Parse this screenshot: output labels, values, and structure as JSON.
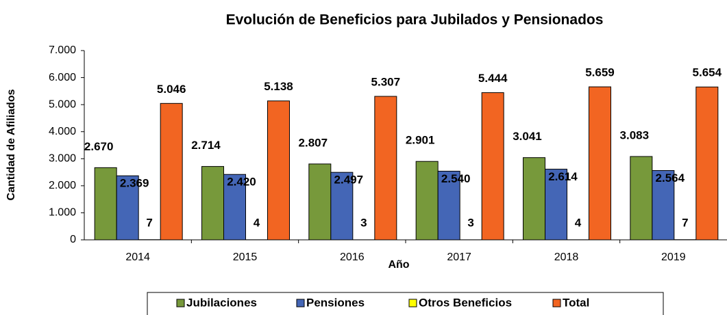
{
  "chart_data": {
    "type": "bar",
    "title": "Evolución de Beneficios para Jubilados y Pensionados",
    "x_label": "Año",
    "y_label": "Cantidad de Afiliados",
    "categories": [
      "2014",
      "2015",
      "2016",
      "2017",
      "2018",
      "2019"
    ],
    "series": [
      {
        "name": "Jubilaciones",
        "color": "#77993b",
        "values": [
          2670,
          2714,
          2807,
          2901,
          3041,
          3083
        ],
        "value_labels": [
          "2.670",
          "2.714",
          "2.807",
          "2.901",
          "3.041",
          "3.083"
        ]
      },
      {
        "name": "Pensiones",
        "color": "#4466b6",
        "values": [
          2369,
          2420,
          2497,
          2540,
          2614,
          2564
        ],
        "value_labels": [
          "2.369",
          "2.420",
          "2.497",
          "2.540",
          "2.614",
          "2.564"
        ]
      },
      {
        "name": "Otros Beneficios",
        "color": "#ffff00",
        "values": [
          7,
          4,
          3,
          3,
          4,
          7
        ],
        "value_labels": [
          "7",
          "4",
          "3",
          "3",
          "4",
          "7"
        ]
      },
      {
        "name": "Total",
        "color": "#f26522",
        "values": [
          5046,
          5138,
          5307,
          5444,
          5659,
          5654
        ],
        "value_labels": [
          "5.046",
          "5.138",
          "5.307",
          "5.444",
          "5.659",
          "5.654"
        ]
      }
    ],
    "ylim": [
      0,
      7000
    ],
    "yticks": [
      0,
      {
        "value": 1000,
        "label": "1.000"
      },
      {
        "value": 2000,
        "label": "2.000"
      },
      {
        "value": 3000,
        "label": "3.000"
      },
      {
        "value": 4000,
        "label": "4.000"
      },
      {
        "value": 5000,
        "label": "5.000"
      },
      {
        "value": 6000,
        "label": "6.000"
      },
      {
        "value": 7000,
        "label": "7.000"
      }
    ],
    "legend": "bottom"
  }
}
